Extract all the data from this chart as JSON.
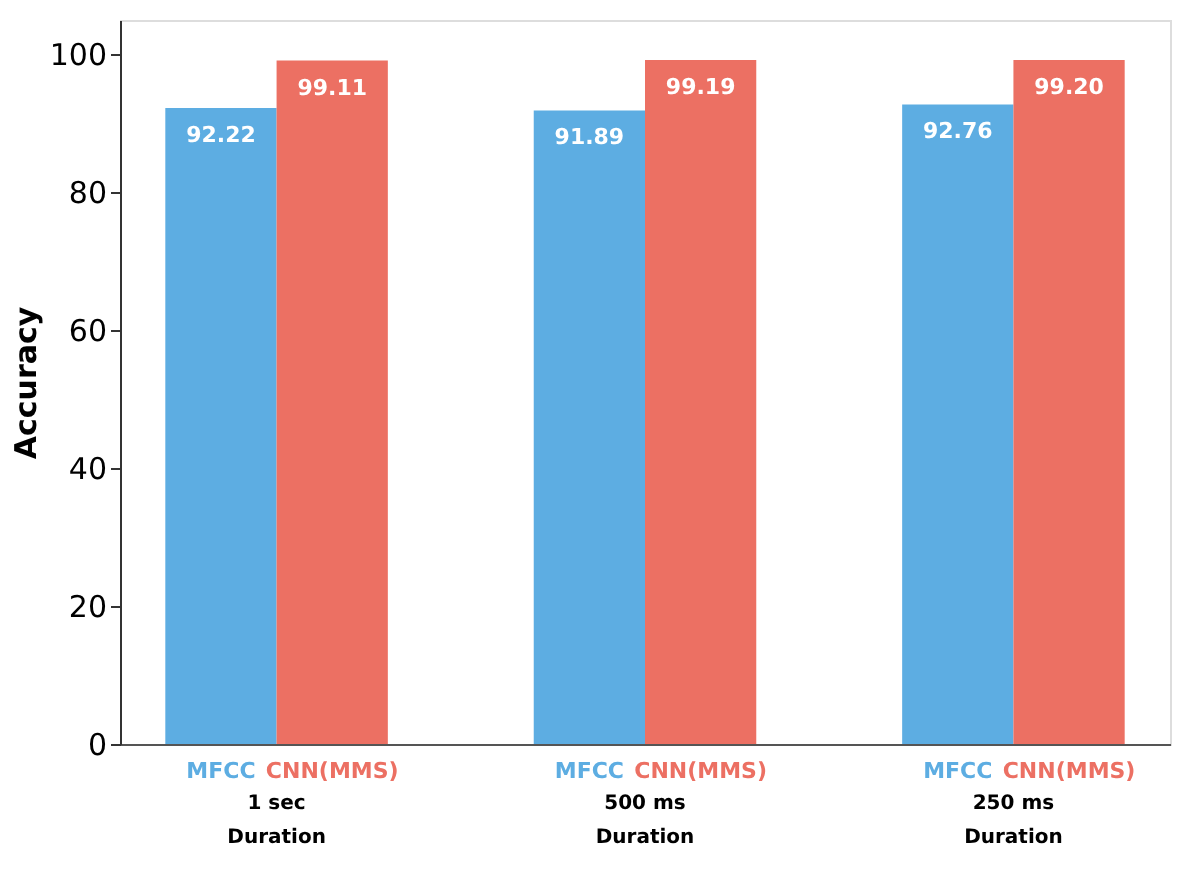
{
  "chart_data": {
    "type": "bar",
    "ylabel": "Accuracy",
    "categories": [
      "1 sec\nDuration",
      "500 ms\nDuration",
      "250 ms\nDuration"
    ],
    "series": [
      {
        "name": "MFCC",
        "color": "#5dade2",
        "values": [
          92.22,
          91.89,
          92.76
        ],
        "value_labels": [
          "92.22",
          "91.89",
          "92.76"
        ]
      },
      {
        "name": "CNN(MMS)",
        "color": "#ec7063",
        "values": [
          99.11,
          99.19,
          99.2
        ],
        "value_labels": [
          "99.11",
          "99.19",
          "99.20"
        ]
      }
    ],
    "ylim": [
      0,
      105
    ],
    "yticks": [
      0,
      20,
      40,
      60,
      80,
      100
    ],
    "grid": false
  }
}
